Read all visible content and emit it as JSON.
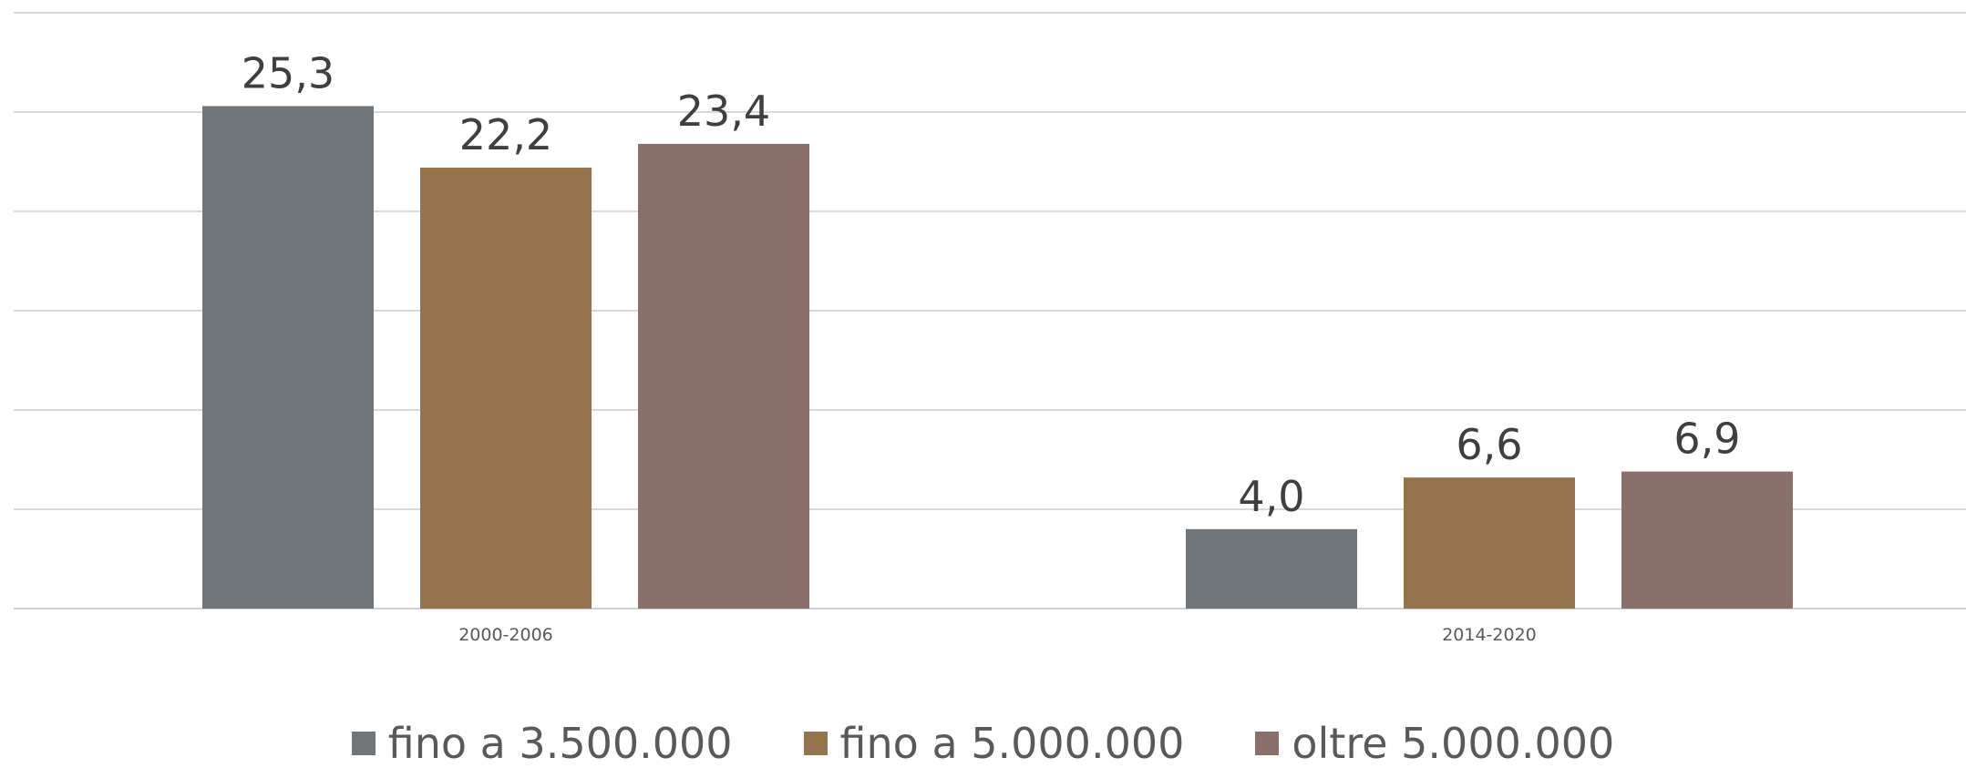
{
  "chart_data": {
    "type": "bar",
    "categories": [
      "2000-2006",
      "2014-2020"
    ],
    "series": [
      {
        "name": "fino a 3.500.000",
        "values": [
          25.3,
          4.0
        ],
        "labels": [
          "25,3",
          "4,0"
        ],
        "color": "#70757a"
      },
      {
        "name": "fino a 5.000.000",
        "values": [
          22.2,
          6.6
        ],
        "labels": [
          "22,2",
          "6,6"
        ],
        "color": "#94734d"
      },
      {
        "name": "oltre 5.000.000",
        "values": [
          23.4,
          6.9
        ],
        "labels": [
          "23,4",
          "6,9"
        ],
        "color": "#8a6f6b"
      }
    ],
    "title": "",
    "xlabel": "",
    "ylabel": "",
    "ylim": [
      0,
      30
    ],
    "grid": true,
    "legend": "bottom"
  }
}
